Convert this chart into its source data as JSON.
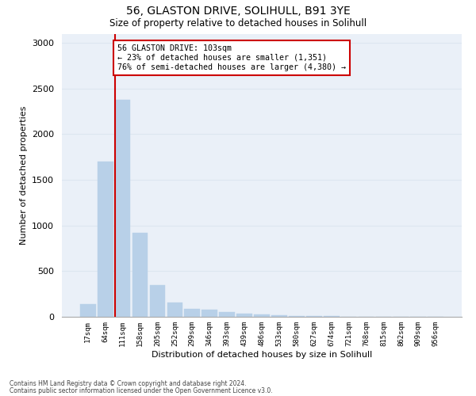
{
  "title_line1": "56, GLASTON DRIVE, SOLIHULL, B91 3YE",
  "title_line2": "Size of property relative to detached houses in Solihull",
  "xlabel": "Distribution of detached houses by size in Solihull",
  "ylabel": "Number of detached properties",
  "categories": [
    "17sqm",
    "64sqm",
    "111sqm",
    "158sqm",
    "205sqm",
    "252sqm",
    "299sqm",
    "346sqm",
    "393sqm",
    "439sqm",
    "486sqm",
    "533sqm",
    "580sqm",
    "627sqm",
    "674sqm",
    "721sqm",
    "768sqm",
    "815sqm",
    "862sqm",
    "909sqm",
    "956sqm"
  ],
  "values": [
    140,
    1700,
    2380,
    920,
    350,
    160,
    90,
    75,
    50,
    35,
    25,
    15,
    10,
    8,
    5,
    4,
    3,
    2,
    2,
    1,
    1
  ],
  "bar_color": "#b8d0e8",
  "bar_edge_color": "#b8d0e8",
  "grid_color": "#dce6f0",
  "background_color": "#eaf0f8",
  "vline_bar_index": 2,
  "annotation_text": "56 GLASTON DRIVE: 103sqm\n← 23% of detached houses are smaller (1,351)\n76% of semi-detached houses are larger (4,380) →",
  "annotation_box_color": "#ffffff",
  "annotation_box_edgecolor": "#cc0000",
  "vline_color": "#cc0000",
  "ylim": [
    0,
    3100
  ],
  "yticks": [
    0,
    500,
    1000,
    1500,
    2000,
    2500,
    3000
  ],
  "footnote1": "Contains HM Land Registry data © Crown copyright and database right 2024.",
  "footnote2": "Contains public sector information licensed under the Open Government Licence v3.0."
}
